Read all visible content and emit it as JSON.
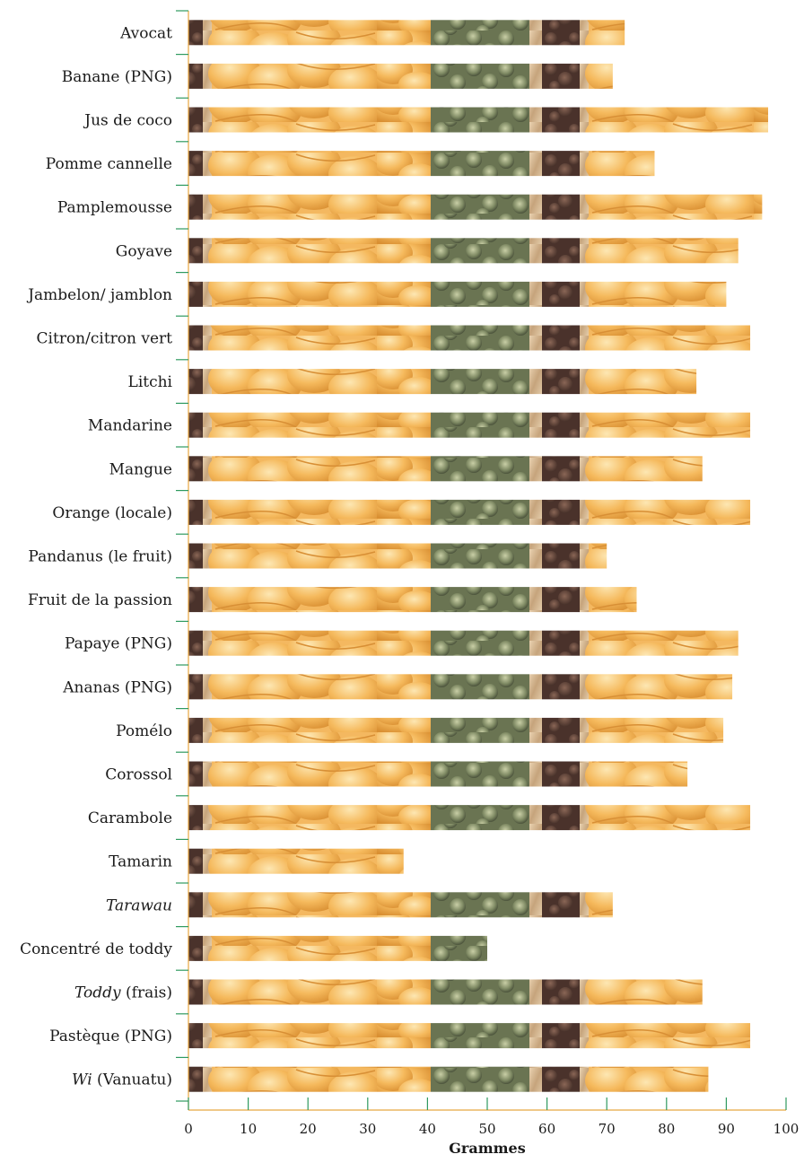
{
  "chart_data": {
    "type": "bar",
    "orientation": "horizontal",
    "xlabel": "Grammes",
    "ylabel": "",
    "xlim": [
      0,
      100
    ],
    "xticks": [
      0,
      10,
      20,
      30,
      40,
      50,
      60,
      70,
      80,
      90,
      100
    ],
    "grid": false,
    "categories": [
      {
        "label": "Avocat",
        "value": 73
      },
      {
        "label": "Banane (PNG)",
        "value": 71
      },
      {
        "label": "Jus de coco",
        "value": 97
      },
      {
        "label": "Pomme cannelle",
        "value": 78
      },
      {
        "label": "Pamplemousse",
        "value": 96
      },
      {
        "label": "Goyave",
        "value": 92
      },
      {
        "label": "Jambelon/ jamblon",
        "value": 90
      },
      {
        "label": "Citron/citron vert",
        "value": 94
      },
      {
        "label": "Litchi",
        "value": 85
      },
      {
        "label": "Mandarine",
        "value": 94
      },
      {
        "label": "Mangue",
        "value": 86
      },
      {
        "label": "Orange (locale)",
        "value": 94
      },
      {
        "label": "Pandanus (le fruit)",
        "value": 70
      },
      {
        "label": "Fruit de la passion",
        "value": 75
      },
      {
        "label": "Papaye (PNG)",
        "value": 92
      },
      {
        "label": "Ananas (PNG)",
        "value": 91
      },
      {
        "label": "Pomélo",
        "value": 89.5
      },
      {
        "label": "Corossol",
        "value": 83.5
      },
      {
        "label": "Carambole",
        "value": 94
      },
      {
        "label": "Tamarin",
        "value": 36
      },
      {
        "label": "Tarawau",
        "italic": "Tarawau",
        "value": 71
      },
      {
        "label": "Concentré de toddy",
        "value": 50
      },
      {
        "label": "Toddy (frais)",
        "italic": "Toddy",
        "rest": " (frais)",
        "value": 86
      },
      {
        "label": "Pastèque (PNG)",
        "value": 94
      },
      {
        "label": "Wi (Vanuatu)",
        "italic": "Wi",
        "rest": " (Vanuatu)",
        "value": 87
      }
    ],
    "colors": {
      "axis": "#e8a640",
      "tick_marks_left": "#2f9a5f",
      "fruit_orange": "#f2b454",
      "fruit_light": "#fbe2a6",
      "fruit_green": "#6f7a55",
      "fruit_dark": "#5a3d33",
      "fruit_skin": "#c9a57e"
    }
  }
}
